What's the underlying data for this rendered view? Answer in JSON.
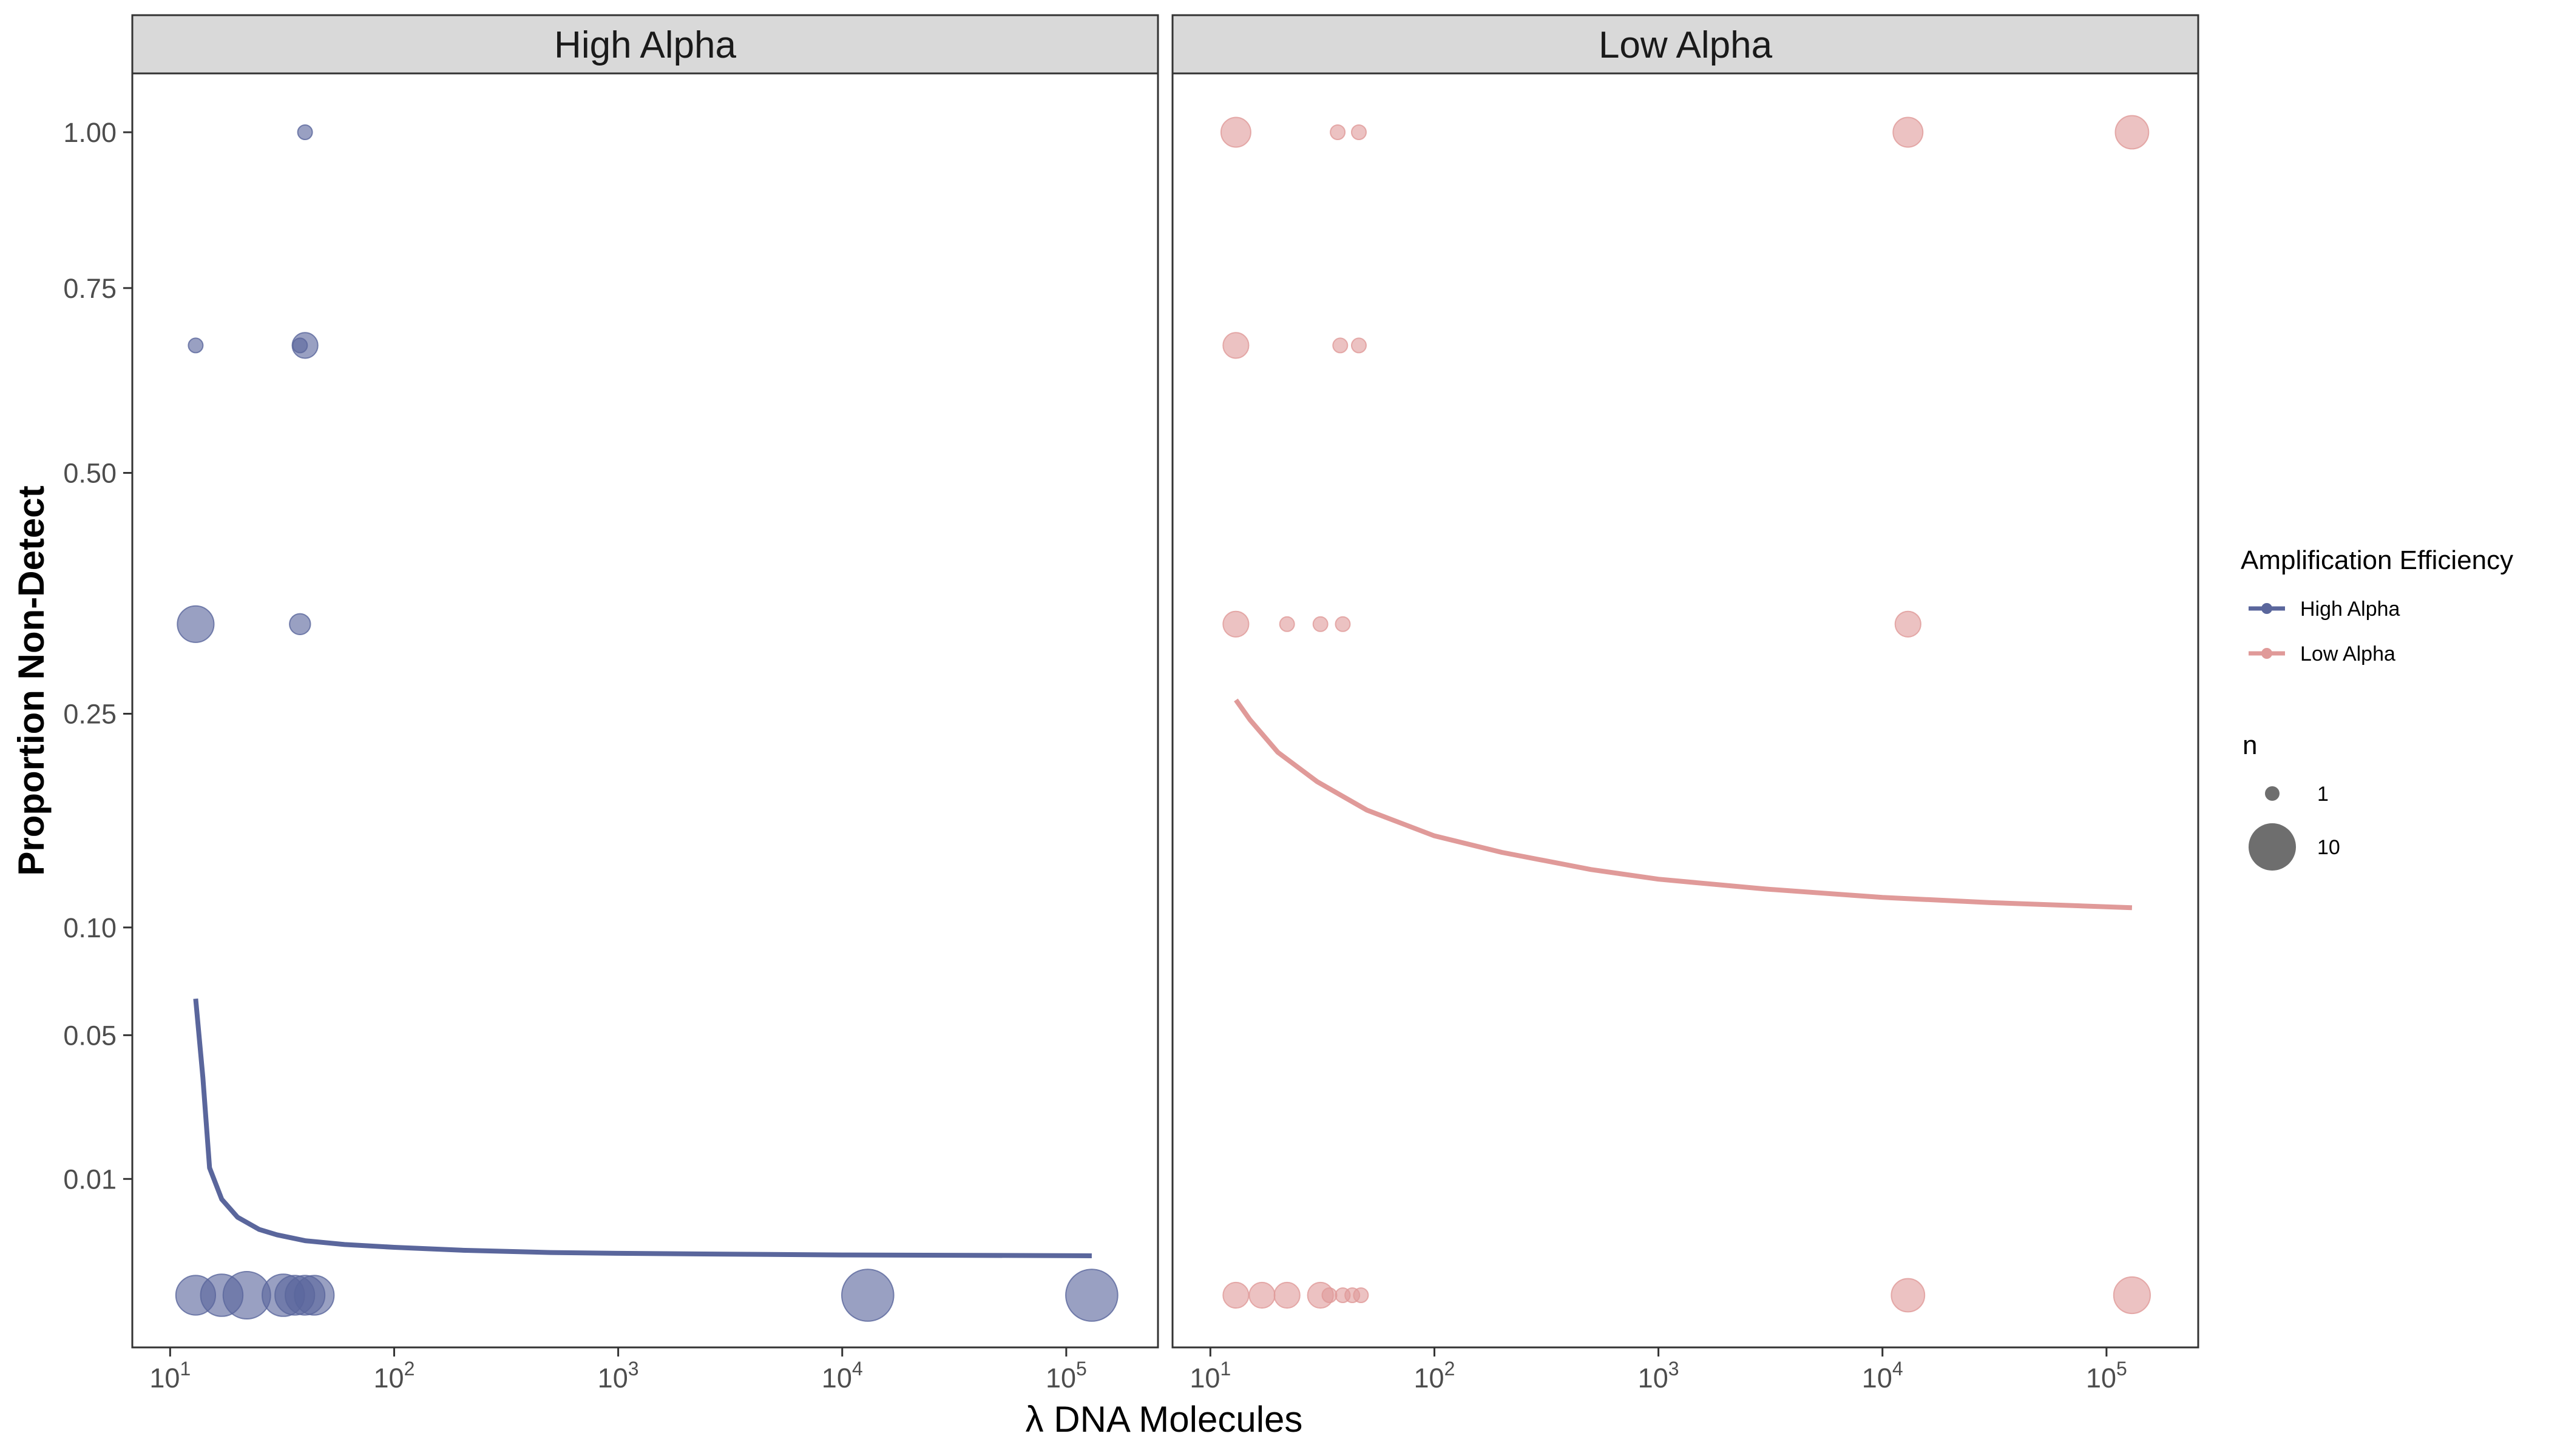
{
  "chart_data": {
    "type": "scatter",
    "xlabel": "λ DNA Molecules",
    "ylabel": "Proportion Non-Detect",
    "x_scale": "log10",
    "xlim": [
      8.7,
      200000
    ],
    "x_ticks": [
      {
        "value": 10,
        "base": "10",
        "exp": "1"
      },
      {
        "value": 100,
        "base": "10",
        "exp": "2"
      },
      {
        "value": 1000,
        "base": "10",
        "exp": "3"
      },
      {
        "value": 10000,
        "base": "10",
        "exp": "4"
      },
      {
        "value": 100000,
        "base": "10",
        "exp": "5"
      }
    ],
    "y_scale": "sqrt",
    "ylim": [
      0,
      1.0
    ],
    "y_ticks": [
      {
        "value": 1.0,
        "label": "1.00"
      },
      {
        "value": 0.75,
        "label": "0.75"
      },
      {
        "value": 0.5,
        "label": "0.50"
      },
      {
        "value": 0.25,
        "label": "0.25"
      },
      {
        "value": 0.1,
        "label": "0.10"
      },
      {
        "value": 0.05,
        "label": "0.05"
      },
      {
        "value": 0.01,
        "label": "0.01"
      }
    ],
    "grid": false,
    "legend_position": "right",
    "panels": [
      {
        "title": "High Alpha",
        "color": "#5a669c",
        "points": [
          {
            "x": 40,
            "y": 1.0,
            "n": 1
          },
          {
            "x": 13,
            "y": 0.667,
            "n": 1
          },
          {
            "x": 38,
            "y": 0.667,
            "n": 1
          },
          {
            "x": 40,
            "y": 0.667,
            "n": 3
          },
          {
            "x": 13,
            "y": 0.333,
            "n": 6
          },
          {
            "x": 38,
            "y": 0.333,
            "n": 2
          },
          {
            "x": 13,
            "y": 0.0,
            "n": 7
          },
          {
            "x": 17,
            "y": 0.0,
            "n": 8
          },
          {
            "x": 22,
            "y": 0.0,
            "n": 10
          },
          {
            "x": 32,
            "y": 0.0,
            "n": 8
          },
          {
            "x": 36,
            "y": 0.0,
            "n": 7
          },
          {
            "x": 40,
            "y": 0.0,
            "n": 7
          },
          {
            "x": 44,
            "y": 0.0,
            "n": 7
          },
          {
            "x": 13000,
            "y": 0.0,
            "n": 12
          },
          {
            "x": 130000,
            "y": 0.0,
            "n": 12
          }
        ],
        "fit": {
          "x": [
            13,
            14,
            15,
            17,
            20,
            25,
            30,
            40,
            60,
            100,
            200,
            500,
            1000,
            3000,
            10000,
            30000,
            130000
          ],
          "y": [
            0.065,
            0.035,
            0.012,
            0.0068,
            0.0045,
            0.0032,
            0.0027,
            0.0022,
            0.0019,
            0.0017,
            0.0015,
            0.00135,
            0.0013,
            0.00125,
            0.0012,
            0.00118,
            0.00115
          ]
        }
      },
      {
        "title": "Low Alpha",
        "color": "#e09a99",
        "points": [
          {
            "x": 13,
            "y": 1.0,
            "n": 4
          },
          {
            "x": 37,
            "y": 1.0,
            "n": 1
          },
          {
            "x": 46,
            "y": 1.0,
            "n": 1
          },
          {
            "x": 13000,
            "y": 1.0,
            "n": 4
          },
          {
            "x": 130000,
            "y": 1.0,
            "n": 5
          },
          {
            "x": 13,
            "y": 0.667,
            "n": 3
          },
          {
            "x": 38,
            "y": 0.667,
            "n": 1
          },
          {
            "x": 46,
            "y": 0.667,
            "n": 1
          },
          {
            "x": 13,
            "y": 0.333,
            "n": 3
          },
          {
            "x": 22,
            "y": 0.333,
            "n": 1
          },
          {
            "x": 31,
            "y": 0.333,
            "n": 1
          },
          {
            "x": 39,
            "y": 0.333,
            "n": 1
          },
          {
            "x": 13000,
            "y": 0.333,
            "n": 3
          },
          {
            "x": 13,
            "y": 0.0,
            "n": 3
          },
          {
            "x": 17,
            "y": 0.0,
            "n": 3
          },
          {
            "x": 22,
            "y": 0.0,
            "n": 3
          },
          {
            "x": 31,
            "y": 0.0,
            "n": 3
          },
          {
            "x": 34,
            "y": 0.0,
            "n": 1
          },
          {
            "x": 39,
            "y": 0.0,
            "n": 1
          },
          {
            "x": 43,
            "y": 0.0,
            "n": 1
          },
          {
            "x": 47,
            "y": 0.0,
            "n": 1
          },
          {
            "x": 13000,
            "y": 0.0,
            "n": 5
          },
          {
            "x": 130000,
            "y": 0.0,
            "n": 6
          }
        ],
        "fit": {
          "x": [
            13,
            15,
            20,
            30,
            50,
            100,
            200,
            500,
            1000,
            3000,
            10000,
            30000,
            130000
          ],
          "y": [
            0.262,
            0.245,
            0.218,
            0.195,
            0.174,
            0.156,
            0.145,
            0.134,
            0.128,
            0.122,
            0.117,
            0.114,
            0.111
          ]
        }
      }
    ],
    "legends": [
      {
        "title": "Amplification Efficiency",
        "items": [
          {
            "label": "High Alpha",
            "color": "#5a669c"
          },
          {
            "label": "Low Alpha",
            "color": "#e09a99"
          }
        ]
      },
      {
        "title": "n",
        "items": [
          {
            "label": "1",
            "n": 1
          },
          {
            "label": "10",
            "n": 10
          }
        ]
      }
    ]
  }
}
